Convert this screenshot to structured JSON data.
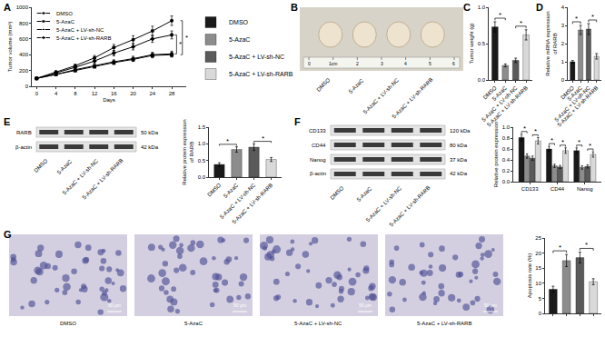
{
  "chart_data": [
    {
      "panel": "A",
      "type": "line",
      "x_label": "Days",
      "y_label": "Tumor volume (mm³)",
      "x": [
        0,
        4,
        8,
        12,
        16,
        20,
        24,
        28
      ],
      "xlim": [
        -1,
        31
      ],
      "xticks": [
        0,
        4,
        8,
        12,
        16,
        20,
        24,
        28
      ],
      "ylim": [
        0,
        1000
      ],
      "yticks": [
        0,
        200,
        400,
        600,
        800,
        1000
      ],
      "legend": "upper left",
      "series": [
        {
          "name": "DMSO",
          "color": "#000000",
          "marker": "circle",
          "values": [
            100,
            180,
            260,
            360,
            490,
            590,
            700,
            830
          ],
          "errors": [
            5,
            15,
            20,
            30,
            40,
            50,
            60,
            60
          ]
        },
        {
          "name": "5-AzaC",
          "color": "#000000",
          "marker": "square",
          "values": [
            100,
            150,
            200,
            250,
            300,
            340,
            390,
            400
          ],
          "errors": [
            5,
            10,
            15,
            20,
            25,
            25,
            30,
            30
          ]
        },
        {
          "name": "5-AzaC + LV-sh-NC",
          "color": "#000000",
          "marker": "triangle",
          "values": [
            100,
            150,
            210,
            260,
            310,
            350,
            400,
            410
          ],
          "errors": [
            5,
            10,
            15,
            20,
            25,
            30,
            30,
            35
          ]
        },
        {
          "name": "5-AzaC + LV-sh-RARB",
          "color": "#000000",
          "marker": "diamond",
          "values": [
            100,
            170,
            240,
            320,
            420,
            500,
            600,
            650
          ],
          "errors": [
            5,
            15,
            20,
            25,
            35,
            40,
            45,
            50
          ]
        }
      ],
      "significance": [
        {
          "from": 0,
          "to": 1,
          "label": "*"
        },
        {
          "from": 2,
          "to": 3,
          "label": "*"
        }
      ]
    },
    {
      "panel": "C",
      "type": "bar",
      "y_label": "Tumor weight (g)",
      "categories": [
        "DMSO",
        "5-AzaC",
        "5-AzaC + LV-sh-NC",
        "5-AzaC + LV-sh-RARB"
      ],
      "values": [
        0.73,
        0.2,
        0.27,
        0.62
      ],
      "errors": [
        0.07,
        0.02,
        0.03,
        0.07
      ],
      "colors": [
        "#1a1a1a",
        "#8c8c8c",
        "#5a5a5a",
        "#d9d9d9"
      ],
      "ylim": [
        0,
        1.0
      ],
      "yticks": [
        {
          "value": 0,
          "label": "0.0"
        },
        {
          "value": 0.5,
          "label": "0.5"
        },
        {
          "value": 1.0,
          "label": "1.0"
        }
      ],
      "legend": "left",
      "significance": [
        {
          "from": 0,
          "to": 1,
          "label": "*"
        },
        {
          "from": 2,
          "to": 3,
          "label": "*"
        }
      ]
    },
    {
      "panel": "D",
      "type": "bar",
      "y_label": [
        "Relative mRNA expression",
        "of RARB"
      ],
      "categories": [
        "DMSO",
        "5-AzaC",
        "5-AzaC + LV-sh-NC",
        "5-AzaC + LV-sh-RARB"
      ],
      "values": [
        1.0,
        2.75,
        2.8,
        1.3
      ],
      "errors": [
        0.07,
        0.25,
        0.3,
        0.15
      ],
      "colors": [
        "#1a1a1a",
        "#8c8c8c",
        "#5a5a5a",
        "#d9d9d9"
      ],
      "ylim": [
        0,
        4
      ],
      "yticks": [
        0,
        1,
        2,
        3,
        4
      ],
      "significance": [
        {
          "from": 0,
          "to": 1,
          "label": "*"
        },
        {
          "from": 2,
          "to": 3,
          "label": "*"
        }
      ]
    },
    {
      "type": "bar",
      "y_label": [
        "Relative protein expression",
        "of RARB"
      ],
      "categories": [
        "DMSO",
        "5-AzaC",
        "5-AzaC + LV-sh-NC",
        "5-AzaC + LV-sh-RARB"
      ],
      "values": [
        0.38,
        0.83,
        0.9,
        0.53
      ],
      "errors": [
        0.05,
        0.08,
        0.1,
        0.06
      ],
      "colors": [
        "#1a1a1a",
        "#8c8c8c",
        "#5a5a5a",
        "#d9d9d9"
      ],
      "ylim": [
        0,
        1.5
      ],
      "yticks": [
        {
          "value": 0,
          "label": "0.0"
        },
        {
          "value": 0.5,
          "label": "0.5"
        },
        {
          "value": 1.0,
          "label": "1.0"
        },
        {
          "value": 1.5,
          "label": "1.5"
        }
      ],
      "significance": [
        {
          "from": 0,
          "to": 1,
          "label": "*"
        },
        {
          "from": 2,
          "to": 3,
          "label": "*"
        }
      ]
    },
    {
      "type": "bar",
      "y_label": "Relative protein expression",
      "categories": [
        "CD133",
        "CD44",
        "Nanog"
      ],
      "series": [
        {
          "name": "DMSO",
          "color": "#1a1a1a",
          "values": [
            0.81,
            0.6,
            0.57
          ],
          "errors": [
            0.06,
            0.05,
            0.05
          ]
        },
        {
          "name": "5-AzaC",
          "color": "#8c8c8c",
          "values": [
            0.47,
            0.29,
            0.26
          ],
          "errors": [
            0.04,
            0.03,
            0.03
          ]
        },
        {
          "name": "5-AzaC + LV-sh-NC",
          "color": "#5a5a5a",
          "values": [
            0.43,
            0.27,
            0.28
          ],
          "errors": [
            0.04,
            0.03,
            0.03
          ]
        },
        {
          "name": "5-AzaC + LV-sh-RARB",
          "color": "#d9d9d9",
          "values": [
            0.75,
            0.57,
            0.5
          ],
          "errors": [
            0.06,
            0.05,
            0.05
          ]
        }
      ],
      "ylim": [
        0,
        1.0
      ],
      "yticks": [
        {
          "value": 0,
          "label": "0.0"
        },
        {
          "value": 0.2,
          "label": "0.2"
        },
        {
          "value": 0.4,
          "label": "0.4"
        },
        {
          "value": 0.6,
          "label": "0.6"
        },
        {
          "value": 0.8,
          "label": "0.8"
        },
        {
          "value": 1.0,
          "label": "1.0"
        }
      ],
      "significance": [
        {
          "group": 0,
          "from": 0,
          "to": 1,
          "label": "*"
        },
        {
          "group": 0,
          "from": 2,
          "to": 3,
          "label": "*"
        },
        {
          "group": 1,
          "from": 0,
          "to": 1,
          "label": "*"
        },
        {
          "group": 1,
          "from": 2,
          "to": 3,
          "label": "*"
        },
        {
          "group": 2,
          "from": 0,
          "to": 1,
          "label": "*"
        },
        {
          "group": 2,
          "from": 2,
          "to": 3,
          "label": "*"
        }
      ]
    },
    {
      "type": "bar",
      "y_label": "Apoptosis rate (%)",
      "categories": [
        "DMSO",
        "5-AzaC",
        "5-AzaC + LV-sh-NC",
        "5-AzaC + LV-sh-RARB"
      ],
      "values": [
        8,
        17.5,
        18.5,
        10.5
      ],
      "errors": [
        1,
        2,
        1.8,
        1
      ],
      "colors": [
        "#1a1a1a",
        "#8c8c8c",
        "#5a5a5a",
        "#d9d9d9"
      ],
      "ylim": [
        0,
        25
      ],
      "yticks": [
        0,
        5,
        10,
        15,
        20,
        25
      ],
      "tick_labels": "y",
      "significance": [
        {
          "from": 0,
          "to": 1,
          "label": "*"
        },
        {
          "from": 2,
          "to": 3,
          "label": "*"
        }
      ]
    }
  ],
  "image_panels": [
    {
      "panel": "B",
      "kind": "photo",
      "ruler": [
        "0",
        "1cm",
        "2",
        "3",
        "4",
        "5",
        "6"
      ],
      "labels": [
        "DMSO",
        "5-AzaC",
        "5-AzaC + LV-sh-NC",
        "5-AzaC + LV-sh-RARB"
      ]
    },
    {
      "panel": "E",
      "kind": "blot",
      "bands": [
        {
          "name": "RARB",
          "size": "50 kDa"
        },
        {
          "name": "β-actin",
          "size": "42 kDa"
        }
      ],
      "labels": [
        "DMSO",
        "5-AzaC",
        "5-AzaC + LV-sh-NC",
        "5-AzaC + LV-sh-RARB"
      ]
    },
    {
      "panel": "F",
      "kind": "blot",
      "bands": [
        {
          "name": "CD133",
          "size": "120 kDa"
        },
        {
          "name": "CD44",
          "size": "80 kDa"
        },
        {
          "name": "Nanog",
          "size": "37 kDa"
        },
        {
          "name": "β-actin",
          "size": "42 kDa"
        }
      ],
      "labels": [
        "DMSO",
        "5-AzaC",
        "5-AzaC + LV-sh-NC",
        "5-AzaC + LV-sh-RARB"
      ]
    },
    {
      "panel": "G",
      "kind": "micrograph",
      "scale": "50 μm",
      "labels": [
        "DMSO",
        "5-AzaC",
        "5-AzaC + LV-sh-NC",
        "5-AzaC + LV-sh-RARB"
      ]
    }
  ]
}
